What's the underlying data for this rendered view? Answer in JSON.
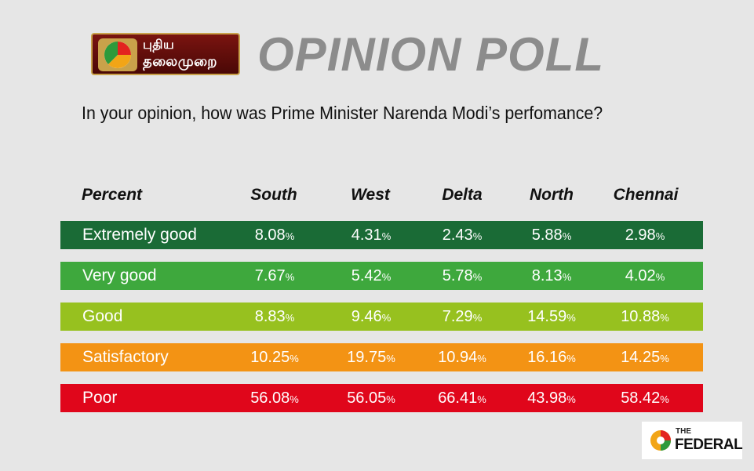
{
  "header": {
    "logo_lines": [
      "புதிய",
      "தலைமுறை"
    ],
    "title": "OPINION POLL"
  },
  "question": "In your opinion, how was Prime Minister Narenda Modi’s perfomance?",
  "colors": {
    "background": "#e6e6e6",
    "Extremely good": "#1a6b36",
    "Very good": "#3ea83d",
    "Good": "#97c11f",
    "Satisfactory": "#f39314",
    "Poor": "#e0061b",
    "title": "#8c8c8c"
  },
  "chart_data": {
    "type": "table",
    "header_label": "Percent",
    "columns": [
      "South",
      "West",
      "Delta",
      "North",
      "Chennai"
    ],
    "rows": [
      {
        "label": "Extremely good",
        "values": [
          "8.08",
          "4.31",
          "2.43",
          "5.88",
          "2.98"
        ]
      },
      {
        "label": "Very good",
        "values": [
          "7.67",
          "5.42",
          "5.78",
          "8.13",
          "4.02"
        ]
      },
      {
        "label": "Good",
        "values": [
          "8.83",
          "9.46",
          "7.29",
          "14.59",
          "10.88"
        ]
      },
      {
        "label": "Satisfactory",
        "values": [
          "10.25",
          "19.75",
          "10.94",
          "16.16",
          "14.25"
        ]
      },
      {
        "label": "Poor",
        "values": [
          "56.08",
          "56.05",
          "66.41",
          "43.98",
          "58.42"
        ]
      }
    ],
    "unit": "%"
  },
  "footer": {
    "logo_small": "THE",
    "logo_name": "FEDERAL",
    "icon": "federal-logo-icon"
  }
}
